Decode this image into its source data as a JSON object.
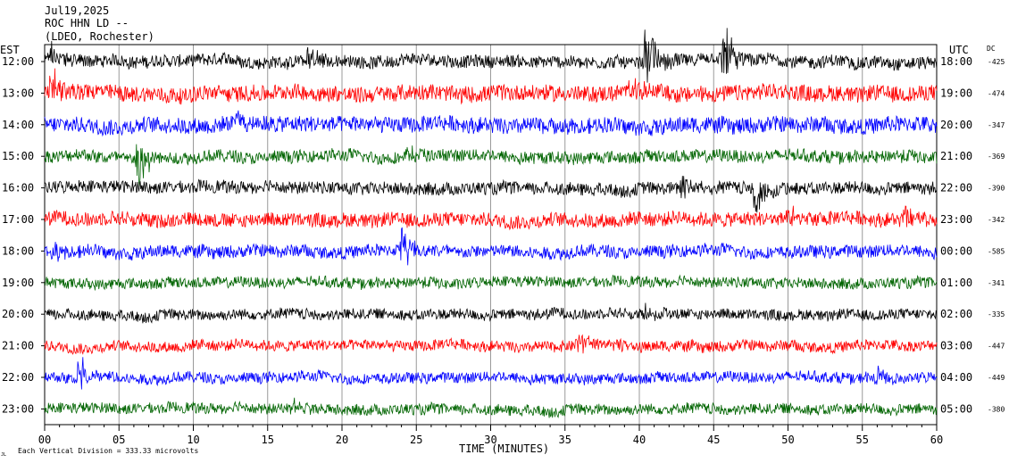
{
  "header": {
    "date": "Jul19,2025",
    "station": "ROC HHN LD --",
    "network": "(LDEO, Rochester)"
  },
  "left_axis_label": "EST",
  "right_axis_label": "UTC",
  "dc_label": "DC",
  "footer": {
    "scale_note": "Each Vertical Division =  333.33 microvolts",
    "corner_mark": "JL"
  },
  "colors": {
    "cycle": [
      "#000000",
      "#ff0000",
      "#0000ff",
      "#006400"
    ],
    "grid": "#9a9a9a",
    "axis": "#000000",
    "text": "#000000"
  },
  "chart_data": {
    "type": "line",
    "title": "",
    "xlabel": "TIME (MINUTES)",
    "ylabel": "",
    "xlim": [
      0,
      60
    ],
    "x_ticks": [
      0,
      5,
      10,
      15,
      20,
      25,
      30,
      35,
      40,
      45,
      50,
      55,
      60
    ],
    "x_tick_labels": [
      "00",
      "05",
      "10",
      "15",
      "20",
      "25",
      "30",
      "35",
      "40",
      "45",
      "50",
      "55",
      "60"
    ],
    "grid": true,
    "series": [
      {
        "left_label": "12:00",
        "right_label": "18:00",
        "dc": "-425",
        "color": "#000000",
        "noise": 7,
        "events": [
          {
            "t": 0.5,
            "amp": 18
          },
          {
            "t": 40.6,
            "amp": 42
          },
          {
            "t": 45.8,
            "amp": 30
          },
          {
            "t": 17.8,
            "amp": 16
          }
        ]
      },
      {
        "left_label": "13:00",
        "right_label": "19:00",
        "dc": "-474",
        "color": "#ff0000",
        "noise": 9,
        "events": [
          {
            "t": 0.6,
            "amp": 26
          },
          {
            "t": 39.5,
            "amp": 14
          }
        ]
      },
      {
        "left_label": "14:00",
        "right_label": "20:00",
        "dc": "-347",
        "color": "#0000ff",
        "noise": 9,
        "events": [
          {
            "t": 34.2,
            "amp": 10
          },
          {
            "t": 13.0,
            "amp": 14
          }
        ]
      },
      {
        "left_label": "15:00",
        "right_label": "21:00",
        "dc": "-369",
        "color": "#006400",
        "noise": 7,
        "events": [
          {
            "t": 6.4,
            "amp": -28
          },
          {
            "t": 24.3,
            "amp": 12
          }
        ]
      },
      {
        "left_label": "16:00",
        "right_label": "22:00",
        "dc": "-390",
        "color": "#000000",
        "noise": 7,
        "events": [
          {
            "t": 48.0,
            "amp": -26
          },
          {
            "t": 43.0,
            "amp": 16
          }
        ]
      },
      {
        "left_label": "17:00",
        "right_label": "23:00",
        "dc": "-342",
        "color": "#ff0000",
        "noise": 8,
        "events": [
          {
            "t": 58.0,
            "amp": 18
          },
          {
            "t": 50.0,
            "amp": 14
          }
        ]
      },
      {
        "left_label": "18:00",
        "right_label": "00:00",
        "dc": "-585",
        "color": "#0000ff",
        "noise": 7,
        "events": [
          {
            "t": 24.2,
            "amp": 22
          },
          {
            "t": 0.6,
            "amp": 14
          }
        ]
      },
      {
        "left_label": "19:00",
        "right_label": "01:00",
        "dc": "-341",
        "color": "#006400",
        "noise": 6,
        "events": []
      },
      {
        "left_label": "20:00",
        "right_label": "02:00",
        "dc": "-335",
        "color": "#000000",
        "noise": 6,
        "events": [
          {
            "t": 40.5,
            "amp": 12
          }
        ]
      },
      {
        "left_label": "21:00",
        "right_label": "03:00",
        "dc": "-447",
        "color": "#ff0000",
        "noise": 6,
        "events": [
          {
            "t": 38.2,
            "amp": 10
          },
          {
            "t": 36.0,
            "amp": 12
          }
        ]
      },
      {
        "left_label": "22:00",
        "right_label": "04:00",
        "dc": "-449",
        "color": "#0000ff",
        "noise": 6,
        "events": [
          {
            "t": 2.5,
            "amp": 24
          },
          {
            "t": 56.0,
            "amp": 10
          }
        ]
      },
      {
        "left_label": "23:00",
        "right_label": "05:00",
        "dc": "-380",
        "color": "#006400",
        "noise": 6,
        "events": [
          {
            "t": 16.7,
            "amp": 10
          }
        ]
      }
    ]
  }
}
